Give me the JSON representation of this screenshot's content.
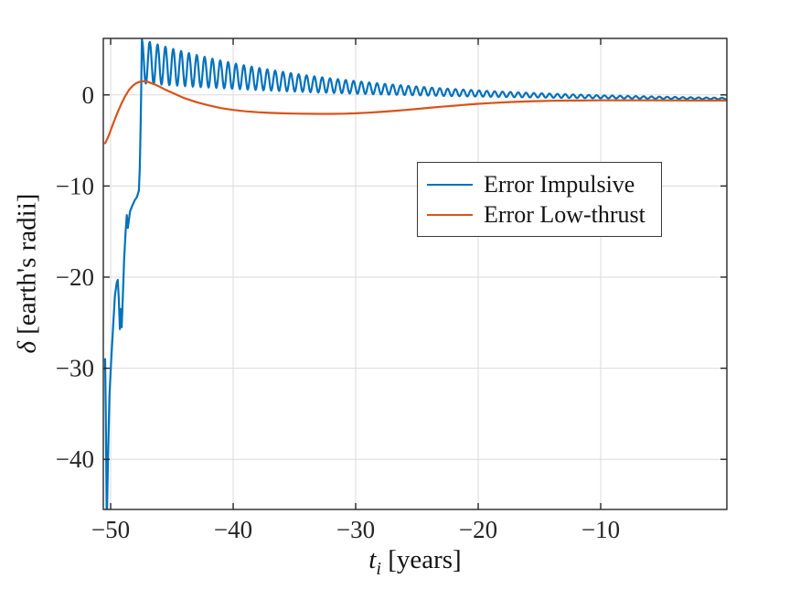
{
  "chart_data": {
    "type": "line",
    "title": "",
    "xlabel": "t_i [years]",
    "xlabel_var": "t",
    "xlabel_sub": "i",
    "xlabel_rest": " [years]",
    "ylabel": "delta [earth's radii]",
    "ylabel_symbol": "δ",
    "ylabel_rest": " [earth's radii]",
    "xlim": [
      -50.6,
      0.3
    ],
    "ylim": [
      -45.5,
      6.2
    ],
    "grid": true,
    "background": "#ffffff",
    "axis_color": "#262626",
    "grid_color": "#dbdbdb",
    "x_ticks": [
      {
        "value": -50,
        "label": "−50"
      },
      {
        "value": -40,
        "label": "−40"
      },
      {
        "value": -30,
        "label": "−30"
      },
      {
        "value": -20,
        "label": "−20"
      },
      {
        "value": -10,
        "label": "−10"
      }
    ],
    "y_ticks": [
      {
        "value": 0,
        "label": "0"
      },
      {
        "value": -10,
        "label": "−10"
      },
      {
        "value": -20,
        "label": "−20"
      },
      {
        "value": -30,
        "label": "−30"
      },
      {
        "value": -40,
        "label": "−40"
      }
    ],
    "legend": {
      "position": "center-right",
      "entries": [
        "Error Impulsive",
        "Error Low-thrust"
      ]
    },
    "series": [
      {
        "name": "Error Impulsive",
        "color": "#0072BD",
        "line_width": 2.2,
        "transient_points": [
          [
            -50.45,
            -29
          ],
          [
            -50.4,
            -35
          ],
          [
            -50.32,
            -47
          ],
          [
            -50.22,
            -40
          ],
          [
            -50.1,
            -33
          ],
          [
            -49.95,
            -29
          ],
          [
            -49.8,
            -25.5
          ],
          [
            -49.65,
            -22
          ],
          [
            -49.5,
            -20.6
          ],
          [
            -49.42,
            -20.3
          ],
          [
            -49.33,
            -22.5
          ],
          [
            -49.25,
            -25.7
          ],
          [
            -49.18,
            -23.5
          ],
          [
            -49.1,
            -25.5
          ],
          [
            -49.0,
            -22
          ],
          [
            -48.9,
            -18
          ],
          [
            -48.78,
            -15
          ],
          [
            -48.68,
            -13.2
          ],
          [
            -48.6,
            -14.6
          ],
          [
            -48.52,
            -13.8
          ],
          [
            -48.42,
            -12.8
          ],
          [
            -48.25,
            -12.2
          ],
          [
            -48.05,
            -11.6
          ],
          [
            -47.85,
            -11.2
          ],
          [
            -47.7,
            -10.5
          ],
          [
            -47.62,
            -8
          ],
          [
            -47.56,
            -4
          ],
          [
            -47.52,
            -0.5
          ],
          [
            -47.48,
            3.5
          ],
          [
            -47.45,
            6.08
          ]
        ],
        "oscillation": {
          "t_start": -47.45,
          "t_end": 0.3,
          "step": 0.04,
          "baseline_end": -0.62,
          "baseline_amp": 4.3,
          "baseline_tau": 16,
          "amp0": 2.4,
          "amp_tau": 14,
          "period": 0.64
        }
      },
      {
        "name": "Error Low-thrust",
        "color": "#D95319",
        "line_width": 2.2,
        "points": [
          [
            -50.45,
            -5.3
          ],
          [
            -50.2,
            -4.6
          ],
          [
            -50.0,
            -3.9
          ],
          [
            -49.7,
            -2.8
          ],
          [
            -49.4,
            -1.8
          ],
          [
            -49.1,
            -0.9
          ],
          [
            -48.8,
            -0.1
          ],
          [
            -48.5,
            0.55
          ],
          [
            -48.2,
            1.0
          ],
          [
            -47.9,
            1.3
          ],
          [
            -47.6,
            1.45
          ],
          [
            -47.3,
            1.5
          ],
          [
            -47.0,
            1.45
          ],
          [
            -46.5,
            1.2
          ],
          [
            -46.0,
            0.9
          ],
          [
            -45.5,
            0.55
          ],
          [
            -45.0,
            0.25
          ],
          [
            -44.5,
            -0.05
          ],
          [
            -44.0,
            -0.35
          ],
          [
            -43.0,
            -0.8
          ],
          [
            -42.0,
            -1.15
          ],
          [
            -41.0,
            -1.45
          ],
          [
            -40.0,
            -1.65
          ],
          [
            -39.0,
            -1.8
          ],
          [
            -38.0,
            -1.9
          ],
          [
            -37.0,
            -1.97
          ],
          [
            -36.0,
            -2.02
          ],
          [
            -35.0,
            -2.05
          ],
          [
            -34.0,
            -2.07
          ],
          [
            -33.0,
            -2.08
          ],
          [
            -32.0,
            -2.08
          ],
          [
            -31.0,
            -2.06
          ],
          [
            -30.0,
            -2.02
          ],
          [
            -29.0,
            -1.95
          ],
          [
            -28.0,
            -1.87
          ],
          [
            -27.0,
            -1.77
          ],
          [
            -26.0,
            -1.66
          ],
          [
            -25.0,
            -1.54
          ],
          [
            -24.0,
            -1.42
          ],
          [
            -23.0,
            -1.3
          ],
          [
            -22.0,
            -1.19
          ],
          [
            -21.0,
            -1.08
          ],
          [
            -20.0,
            -0.98
          ],
          [
            -19.0,
            -0.9
          ],
          [
            -18.0,
            -0.83
          ],
          [
            -17.0,
            -0.77
          ],
          [
            -16.0,
            -0.72
          ],
          [
            -15.0,
            -0.68
          ],
          [
            -14.0,
            -0.65
          ],
          [
            -13.0,
            -0.63
          ],
          [
            -12.0,
            -0.62
          ],
          [
            -11.0,
            -0.61
          ],
          [
            -10.0,
            -0.6
          ],
          [
            -8.0,
            -0.6
          ],
          [
            -6.0,
            -0.6
          ],
          [
            -4.0,
            -0.61
          ],
          [
            -2.0,
            -0.62
          ],
          [
            0.3,
            -0.62
          ]
        ]
      }
    ]
  }
}
